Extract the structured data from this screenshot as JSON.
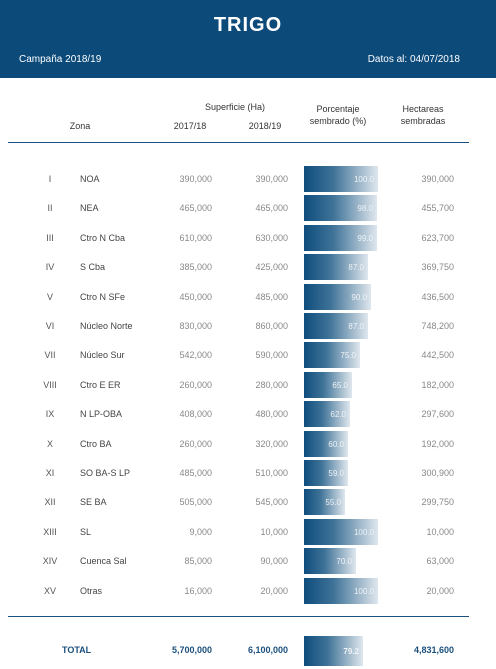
{
  "header": {
    "title": "TRIGO",
    "campaign": "Campaña 2018/19",
    "date": "Datos al: 04/07/2018"
  },
  "columns": {
    "zone": "Zona",
    "surface": "Superficie (Ha)",
    "year_a": "2017/18",
    "year_b": "2018/19",
    "percent_l1": "Porcentaje",
    "percent_l2": "sembrado (%)",
    "hectares_l1": "Hectareas",
    "hectares_l2": "sembradas"
  },
  "rows": [
    {
      "num": "I",
      "zone": "NOA",
      "a": "390,000",
      "b": "390,000",
      "pct": "100.0",
      "ha": "390,000"
    },
    {
      "num": "II",
      "zone": "NEA",
      "a": "465,000",
      "b": "465,000",
      "pct": "98.0",
      "ha": "455,700"
    },
    {
      "num": "III",
      "zone": "Ctro N Cba",
      "a": "610,000",
      "b": "630,000",
      "pct": "99.0",
      "ha": "623,700"
    },
    {
      "num": "IV",
      "zone": "S Cba",
      "a": "385,000",
      "b": "425,000",
      "pct": "87.0",
      "ha": "369,750"
    },
    {
      "num": "V",
      "zone": "Ctro N SFe",
      "a": "450,000",
      "b": "485,000",
      "pct": "90.0",
      "ha": "436,500"
    },
    {
      "num": "VI",
      "zone": "Núcleo Norte",
      "a": "830,000",
      "b": "860,000",
      "pct": "87.0",
      "ha": "748,200"
    },
    {
      "num": "VII",
      "zone": "Núcleo Sur",
      "a": "542,000",
      "b": "590,000",
      "pct": "75.0",
      "ha": "442,500"
    },
    {
      "num": "VIII",
      "zone": "Ctro E ER",
      "a": "260,000",
      "b": "280,000",
      "pct": "65.0",
      "ha": "182,000"
    },
    {
      "num": "IX",
      "zone": "N LP-OBA",
      "a": "408,000",
      "b": "480,000",
      "pct": "62.0",
      "ha": "297,600"
    },
    {
      "num": "X",
      "zone": "Ctro BA",
      "a": "260,000",
      "b": "320,000",
      "pct": "60.0",
      "ha": "192,000"
    },
    {
      "num": "XI",
      "zone": "SO BA-S LP",
      "a": "485,000",
      "b": "510,000",
      "pct": "59.0",
      "ha": "300,900"
    },
    {
      "num": "XII",
      "zone": "SE BA",
      "a": "505,000",
      "b": "545,000",
      "pct": "55.0",
      "ha": "299,750"
    },
    {
      "num": "XIII",
      "zone": "SL",
      "a": "9,000",
      "b": "10,000",
      "pct": "100.0",
      "ha": "10,000"
    },
    {
      "num": "XIV",
      "zone": "Cuenca Sal",
      "a": "85,000",
      "b": "90,000",
      "pct": "70.0",
      "ha": "63,000"
    },
    {
      "num": "XV",
      "zone": "Otras",
      "a": "16,000",
      "b": "20,000",
      "pct": "100.0",
      "ha": "20,000"
    }
  ],
  "total": {
    "label": "TOTAL",
    "a": "5,700,000",
    "b": "6,100,000",
    "pct": "79.2",
    "ha": "4,831,600"
  }
}
